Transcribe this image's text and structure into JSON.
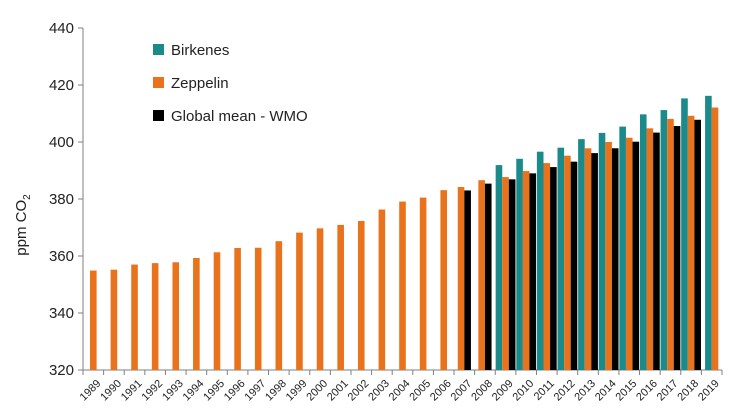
{
  "chart_data": {
    "type": "bar",
    "title": "",
    "xlabel": "",
    "ylabel": "ppm CO",
    "ylabel_subscript": "2",
    "ylim": [
      320,
      440
    ],
    "yticks": [
      "320",
      "340",
      "360",
      "380",
      "400",
      "420",
      "440"
    ],
    "grid": false,
    "legend_position": "top-left",
    "categories": [
      "1989",
      "1990",
      "1991",
      "1992",
      "1993",
      "1994",
      "1995",
      "1996",
      "1997",
      "1998",
      "1999",
      "2000",
      "2001",
      "2002",
      "2003",
      "2004",
      "2005",
      "2006",
      "2007",
      "2008",
      "2009",
      "2010",
      "2011",
      "2012",
      "2013",
      "2014",
      "2015",
      "2016",
      "2017",
      "2018",
      "2019"
    ],
    "series": [
      {
        "name": "Birkenes",
        "color": "#1a8a8a",
        "values": [
          null,
          null,
          null,
          null,
          null,
          null,
          null,
          null,
          null,
          null,
          null,
          null,
          null,
          null,
          null,
          null,
          null,
          null,
          null,
          null,
          391.9,
          394.1,
          396.6,
          398.0,
          401.0,
          403.2,
          405.4,
          409.7,
          411.2,
          415.3,
          416.2
        ]
      },
      {
        "name": "Zeppelin",
        "color": "#e8731c",
        "values": [
          354.9,
          355.2,
          357.0,
          357.5,
          357.8,
          359.3,
          361.3,
          362.8,
          362.9,
          365.2,
          368.2,
          369.7,
          370.9,
          372.3,
          376.3,
          379.1,
          380.5,
          383.1,
          384.2,
          386.6,
          387.7,
          389.8,
          392.6,
          395.2,
          397.8,
          400.0,
          401.5,
          404.8,
          408.1,
          409.2,
          412.1
        ]
      },
      {
        "name": "Global mean - WMO",
        "color": "#000000",
        "values": [
          null,
          null,
          null,
          null,
          null,
          null,
          null,
          null,
          null,
          null,
          null,
          null,
          null,
          null,
          null,
          null,
          null,
          null,
          383.0,
          385.4,
          386.9,
          389.0,
          391.2,
          393.1,
          396.1,
          397.8,
          400.1,
          403.3,
          405.6,
          407.8,
          null
        ]
      }
    ]
  }
}
